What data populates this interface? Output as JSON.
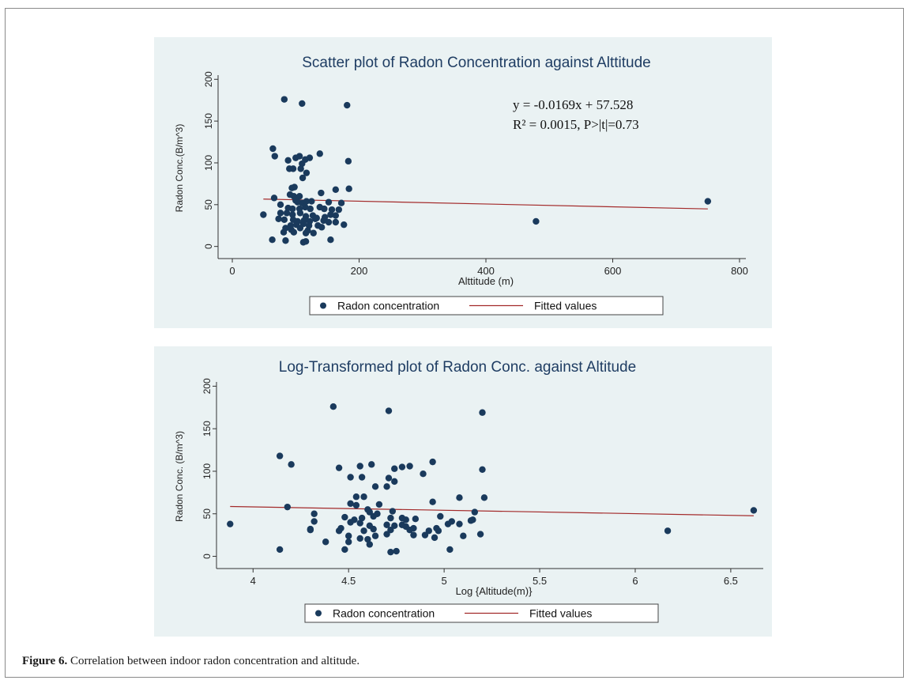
{
  "figure": {
    "label": "Figure 6.",
    "text": "Correlation between indoor radon concentration and altitude."
  },
  "colors": {
    "point": "#1a3a5c",
    "fit": "#a32a2a",
    "panel_bg": "#eaf2f3",
    "title": "#1f3d63"
  },
  "chart_data": [
    {
      "type": "scatter",
      "title": "Scatter plot of Radon Concentration against Alttitude",
      "xlabel": "Alttitude (m)",
      "ylabel": "Radon Conc.(B/m^3)",
      "xlim": [
        -10,
        810
      ],
      "ylim": [
        -6,
        205
      ],
      "xticks": [
        0,
        200,
        400,
        600,
        800
      ],
      "yticks": [
        0,
        50,
        100,
        150,
        200
      ],
      "grid": false,
      "legend": {
        "position": "bottom",
        "entries": [
          "Radon concentration",
          "Fitted values"
        ]
      },
      "annotation": [
        "y = -0.0169x + 57.528",
        "R² = 0.0015, P>|t|=0.73"
      ],
      "series": [
        {
          "name": "Radon concentration",
          "points": [
            [
              82,
              176
            ],
            [
              110,
              171
            ],
            [
              181,
              169
            ],
            [
              64,
              117
            ],
            [
              67,
              108
            ],
            [
              138,
              111
            ],
            [
              88,
              103
            ],
            [
              100,
              106
            ],
            [
              106,
              108
            ],
            [
              115,
              104
            ],
            [
              122,
              106
            ],
            [
              183,
              102
            ],
            [
              110,
              99
            ],
            [
              90,
              93
            ],
            [
              96,
              93
            ],
            [
              108,
              93
            ],
            [
              117,
              88
            ],
            [
              111,
              82
            ],
            [
              94,
              70
            ],
            [
              98,
              71
            ],
            [
              163,
              68
            ],
            [
              184,
              69
            ],
            [
              91,
              62
            ],
            [
              97,
              60
            ],
            [
              106,
              60
            ],
            [
              140,
              64
            ],
            [
              66,
              58
            ],
            [
              100,
              55
            ],
            [
              110,
              52
            ],
            [
              103,
              53
            ],
            [
              117,
              54
            ],
            [
              125,
              54
            ],
            [
              152,
              53
            ],
            [
              172,
              52
            ],
            [
              76,
              50
            ],
            [
              88,
              46
            ],
            [
              95,
              45
            ],
            [
              106,
              45
            ],
            [
              115,
              47
            ],
            [
              123,
              45
            ],
            [
              138,
              47
            ],
            [
              145,
              45
            ],
            [
              157,
              44
            ],
            [
              168,
              44
            ],
            [
              49,
              38
            ],
            [
              76,
              40
            ],
            [
              86,
              40
            ],
            [
              95,
              38
            ],
            [
              107,
              40
            ],
            [
              116,
              36
            ],
            [
              127,
              37
            ],
            [
              133,
              34
            ],
            [
              146,
              35
            ],
            [
              155,
              38
            ],
            [
              163,
              37
            ],
            [
              73,
              33
            ],
            [
              82,
              32
            ],
            [
              96,
              32
            ],
            [
              103,
              30
            ],
            [
              113,
              31
            ],
            [
              122,
              30
            ],
            [
              131,
              33
            ],
            [
              144,
              31
            ],
            [
              152,
              29
            ],
            [
              163,
              29
            ],
            [
              92,
              25
            ],
            [
              101,
              26
            ],
            [
              112,
              27
            ],
            [
              121,
              25
            ],
            [
              135,
              25
            ],
            [
              176,
              26
            ],
            [
              84,
              22
            ],
            [
              93,
              20
            ],
            [
              107,
              22
            ],
            [
              119,
              19
            ],
            [
              141,
              23
            ],
            [
              81,
              17
            ],
            [
              97,
              17
            ],
            [
              116,
              16
            ],
            [
              128,
              16
            ],
            [
              63,
              8
            ],
            [
              84,
              7
            ],
            [
              112,
              5
            ],
            [
              116,
              6
            ],
            [
              155,
              8
            ],
            [
              479,
              30
            ],
            [
              750,
              54
            ]
          ]
        },
        {
          "name": "Fitted values",
          "line": [
            [
              49,
              56.7
            ],
            [
              750,
              44.9
            ]
          ]
        }
      ]
    },
    {
      "type": "scatter",
      "title": "Log-Transformed plot of  Radon Conc. against Altitude",
      "xlabel": "Log {Altitude(m)}",
      "ylabel": "Radon Conc. (B/m^3)",
      "xlim": [
        3.85,
        6.67
      ],
      "ylim": [
        -6,
        205
      ],
      "xticks": [
        4,
        4.5,
        5,
        5.5,
        6,
        6.5
      ],
      "yticks": [
        0,
        50,
        100,
        150,
        200
      ],
      "grid": false,
      "legend": {
        "position": "bottom",
        "entries": [
          "Radon concentration",
          "Fitted values"
        ]
      },
      "series": [
        {
          "name": "Radon concentration",
          "points": [
            [
              4.42,
              176
            ],
            [
              4.71,
              171
            ],
            [
              5.2,
              169
            ],
            [
              4.14,
              118
            ],
            [
              4.2,
              108
            ],
            [
              4.94,
              111
            ],
            [
              4.45,
              104
            ],
            [
              4.56,
              106
            ],
            [
              4.62,
              108
            ],
            [
              4.74,
              103
            ],
            [
              4.78,
              105
            ],
            [
              4.82,
              106
            ],
            [
              5.2,
              102
            ],
            [
              4.51,
              93
            ],
            [
              4.57,
              93
            ],
            [
              4.89,
              97
            ],
            [
              4.74,
              88
            ],
            [
              4.64,
              82
            ],
            [
              4.7,
              82
            ],
            [
              4.71,
              92
            ],
            [
              4.54,
              70
            ],
            [
              4.58,
              70
            ],
            [
              5.08,
              69
            ],
            [
              5.21,
              69
            ],
            [
              4.51,
              62
            ],
            [
              4.54,
              60
            ],
            [
              4.66,
              61
            ],
            [
              4.94,
              64
            ],
            [
              4.18,
              58
            ],
            [
              4.61,
              52
            ],
            [
              4.6,
              55
            ],
            [
              4.65,
              50
            ],
            [
              4.73,
              53
            ],
            [
              5.16,
              52
            ],
            [
              5.04,
              41
            ],
            [
              4.32,
              50
            ],
            [
              4.48,
              46
            ],
            [
              4.53,
              43
            ],
            [
              4.57,
              45
            ],
            [
              4.63,
              47
            ],
            [
              4.72,
              45
            ],
            [
              4.78,
              45
            ],
            [
              4.8,
              43
            ],
            [
              4.85,
              44
            ],
            [
              4.98,
              47
            ],
            [
              5.14,
              42
            ],
            [
              5.15,
              43
            ],
            [
              3.88,
              38
            ],
            [
              4.32,
              41
            ],
            [
              4.45,
              30
            ],
            [
              4.51,
              40
            ],
            [
              4.56,
              39
            ],
            [
              4.61,
              36
            ],
            [
              4.7,
              37
            ],
            [
              4.74,
              36
            ],
            [
              4.78,
              37
            ],
            [
              4.8,
              35
            ],
            [
              4.84,
              33
            ],
            [
              4.96,
              33
            ],
            [
              5.08,
              38
            ],
            [
              5.02,
              38
            ],
            [
              4.3,
              32
            ],
            [
              4.3,
              31
            ],
            [
              4.46,
              33
            ],
            [
              4.58,
              30
            ],
            [
              4.63,
              32
            ],
            [
              4.72,
              31
            ],
            [
              4.82,
              31
            ],
            [
              4.92,
              30
            ],
            [
              4.97,
              30
            ],
            [
              4.5,
              24
            ],
            [
              4.56,
              21
            ],
            [
              4.64,
              24
            ],
            [
              4.7,
              26
            ],
            [
              4.84,
              25
            ],
            [
              4.9,
              25
            ],
            [
              4.95,
              22
            ],
            [
              5.1,
              24
            ],
            [
              5.19,
              26
            ],
            [
              4.38,
              17
            ],
            [
              4.5,
              17
            ],
            [
              4.6,
              20
            ],
            [
              4.61,
              14
            ],
            [
              4.14,
              8
            ],
            [
              4.48,
              8
            ],
            [
              4.72,
              5
            ],
            [
              4.75,
              6
            ],
            [
              5.03,
              8
            ],
            [
              6.17,
              30
            ],
            [
              6.62,
              54
            ]
          ]
        },
        {
          "name": "Fitted values",
          "line": [
            [
              3.88,
              58.6
            ],
            [
              6.62,
              47.7
            ]
          ]
        }
      ]
    }
  ]
}
